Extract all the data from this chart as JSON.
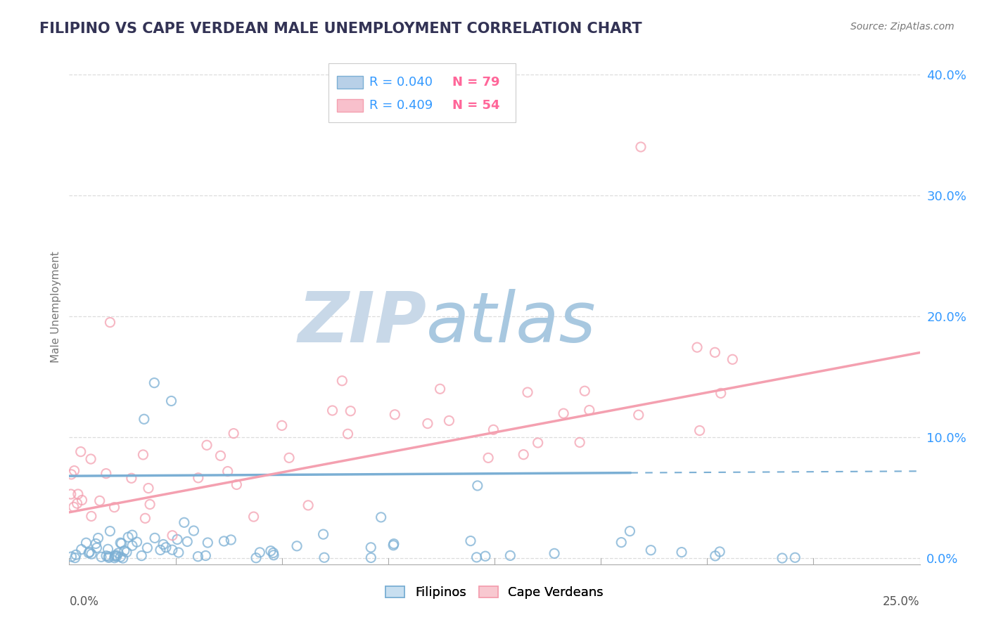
{
  "title": "FILIPINO VS CAPE VERDEAN MALE UNEMPLOYMENT CORRELATION CHART",
  "source_text": "Source: ZipAtlas.com",
  "ylabel": "Male Unemployment",
  "xlim": [
    0.0,
    0.25
  ],
  "ylim": [
    -0.005,
    0.42
  ],
  "ytick_labels": [
    "0.0%",
    "10.0%",
    "20.0%",
    "30.0%",
    "40.0%"
  ],
  "ytick_values": [
    0.0,
    0.1,
    0.2,
    0.3,
    0.4
  ],
  "filipino_color": "#7bafd4",
  "cape_verdean_color": "#f4a0b0",
  "filipino_R": 0.04,
  "filipino_N": 79,
  "cape_verdean_R": 0.409,
  "cape_verdean_N": 54,
  "background_color": "#ffffff",
  "watermark_zip_color": "#c8d8e8",
  "watermark_atlas_color": "#a8c8e0",
  "grid_color": "#dddddd",
  "legend_R_color": "#3399ff",
  "legend_N_color": "#ff6699",
  "fil_trend_start_y": 0.068,
  "fil_trend_end_y": 0.072,
  "fil_trend_solid_end_x": 0.165,
  "cv_trend_start_y": 0.038,
  "cv_trend_end_y": 0.17
}
